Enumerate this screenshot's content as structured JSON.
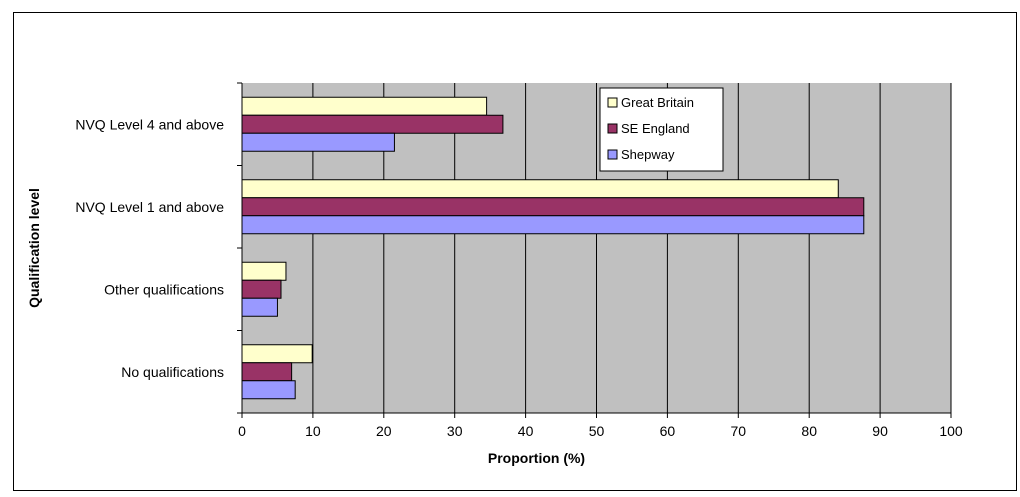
{
  "chart_data": {
    "type": "bar",
    "orientation": "horizontal",
    "categories": [
      "NVQ Level 4 and above",
      "NVQ Level 1 and above",
      "Other qualifications",
      "No qualifications"
    ],
    "series": [
      {
        "name": "Great Britain",
        "color": "#ffffcc",
        "values": [
          34.5,
          84.1,
          6.2,
          9.9
        ]
      },
      {
        "name": "SE England",
        "color": "#993366",
        "values": [
          36.8,
          87.7,
          5.5,
          7.0
        ]
      },
      {
        "name": "Shepway",
        "color": "#9999ff",
        "values": [
          21.5,
          87.7,
          5.0,
          7.5
        ]
      }
    ],
    "title": "",
    "xlabel": "Proportion (%)",
    "ylabel": "Qualification level",
    "xlim": [
      0,
      100
    ],
    "xticks": [
      "0",
      "10",
      "20",
      "30",
      "40",
      "50",
      "60",
      "70",
      "80",
      "90",
      "100"
    ],
    "grid": true,
    "plot_background": "#c0c0c0",
    "legend_position": "top-right"
  }
}
